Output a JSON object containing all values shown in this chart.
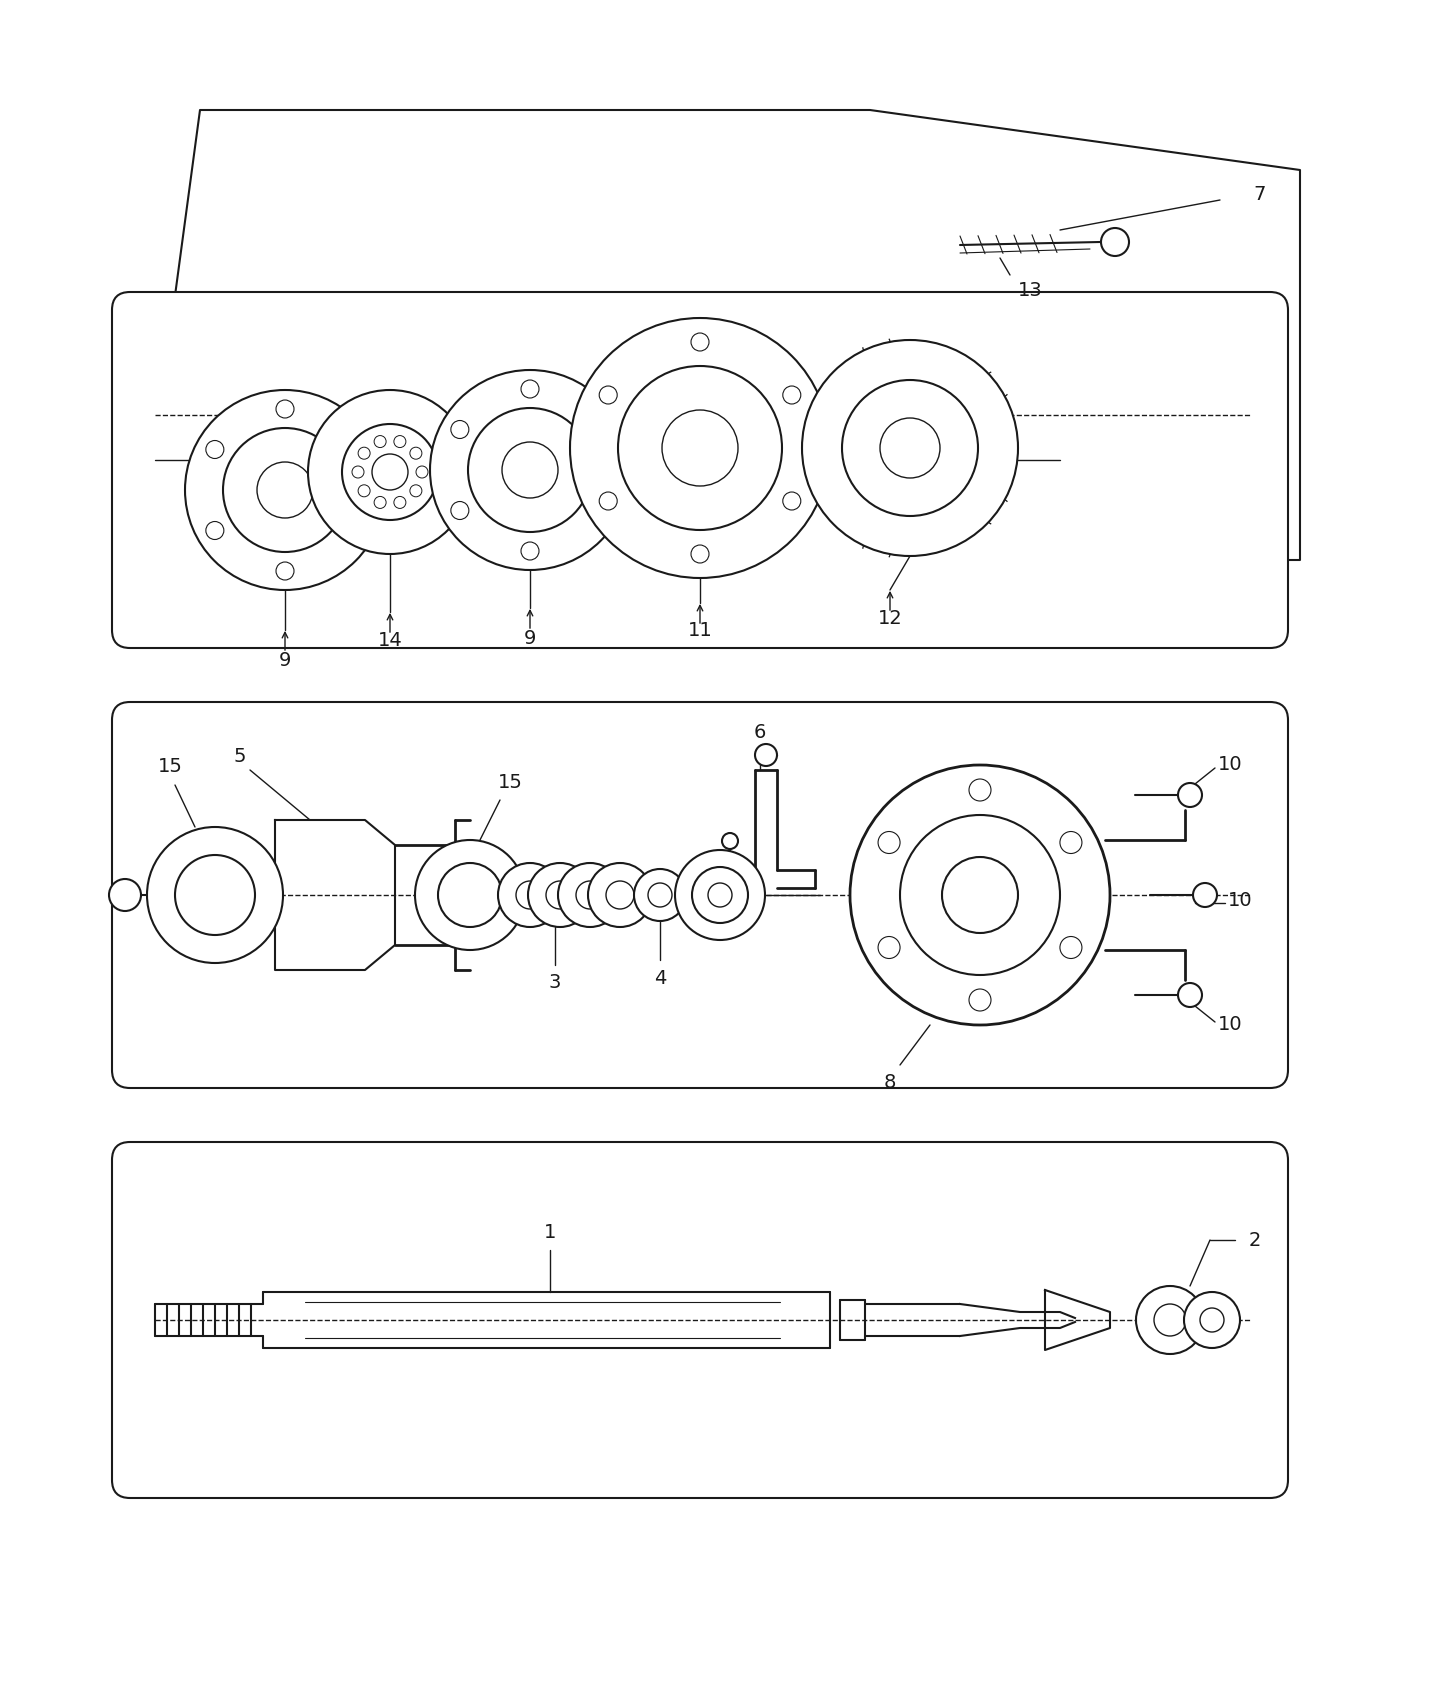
{
  "background_color": "#ffffff",
  "line_color": "#1a1a1a",
  "fig_width": 14.4,
  "fig_height": 16.96,
  "dpi": 100
}
